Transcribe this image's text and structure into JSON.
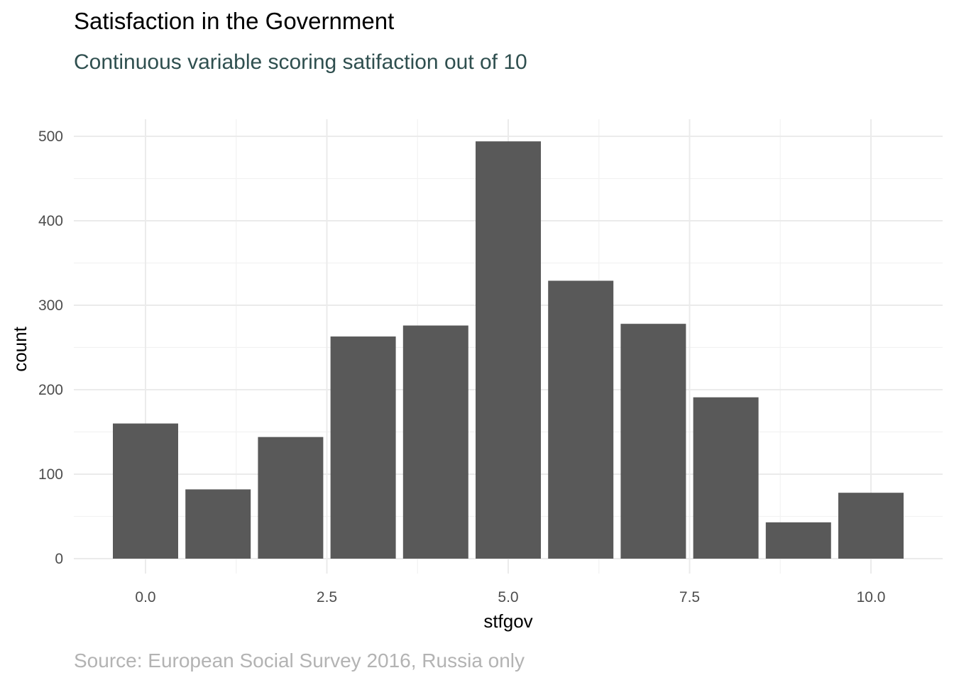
{
  "chart_data": {
    "type": "bar",
    "title": "Satisfaction in the Government",
    "subtitle": "Continuous variable scoring satifaction out of 10",
    "caption": "Source: European Social Survey 2016, Russia only",
    "xlabel": "stfgov",
    "ylabel": "count",
    "x": [
      0,
      1,
      2,
      3,
      4,
      5,
      6,
      7,
      8,
      9,
      10
    ],
    "values": [
      160,
      82,
      144,
      263,
      276,
      494,
      329,
      278,
      191,
      43,
      78
    ],
    "xlim": [
      -0.6,
      10.6
    ],
    "ylim": [
      0,
      520
    ],
    "x_ticks": [
      0,
      2.5,
      5,
      7.5,
      10
    ],
    "x_tick_labels": [
      "0.0",
      "2.5",
      "5.0",
      "7.5",
      "10.0"
    ],
    "y_ticks": [
      0,
      100,
      200,
      300,
      400,
      500
    ],
    "y_tick_labels": [
      "0",
      "100",
      "200",
      "300",
      "400",
      "500"
    ],
    "grid": true,
    "legend": "none"
  },
  "colors": {
    "bar": "#595959",
    "subtitle": "#2f4f4f",
    "caption": "#b3b3b3",
    "background": "#ffffff"
  }
}
